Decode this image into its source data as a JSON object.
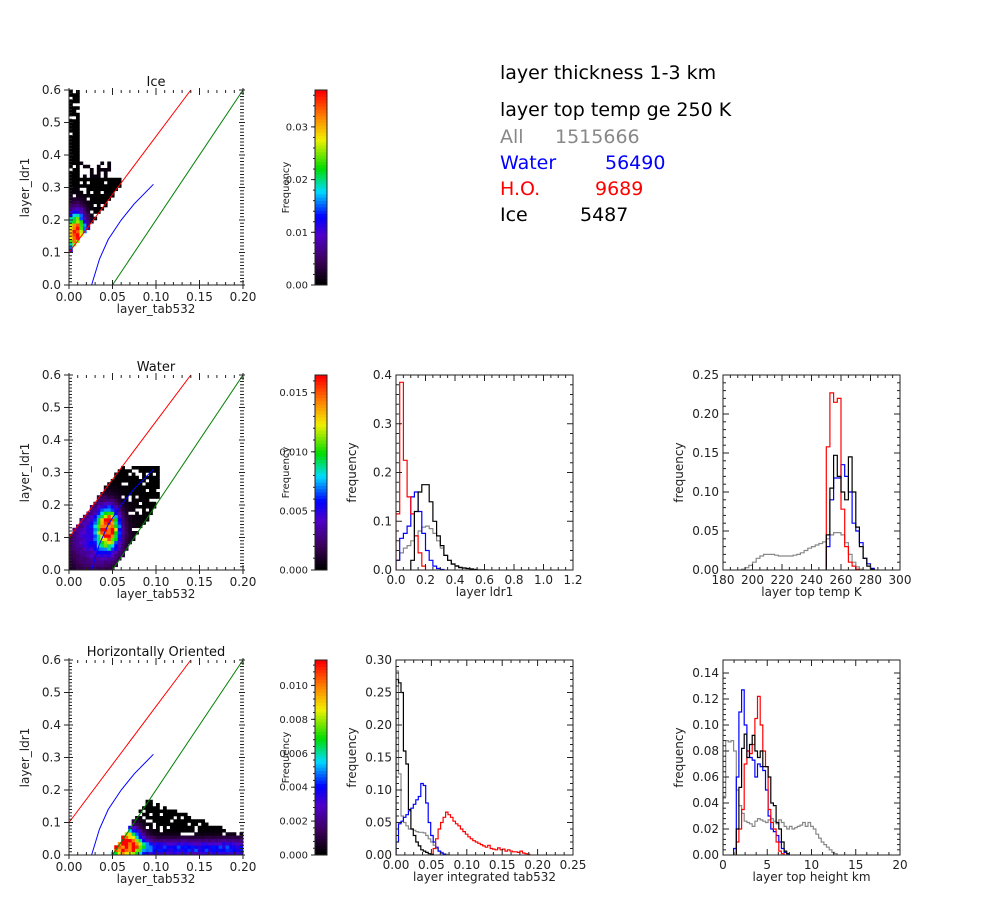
{
  "info": {
    "line1": "layer thickness 1-3 km",
    "line2": "layer top temp ge 250 K",
    "counts": [
      {
        "label": "All",
        "value": "1515666",
        "color": "#888888"
      },
      {
        "label": "Water",
        "value": "56490",
        "color": "#0000ff"
      },
      {
        "label": "H.O.",
        "value": "9689",
        "color": "#ff0000"
      },
      {
        "label": "Ice",
        "value": "5487",
        "color": "#000000"
      }
    ]
  },
  "chart_data": [
    {
      "id": "ice-2dhist",
      "type": "heatmap",
      "title": "Ice",
      "xlabel": "layer_tab532",
      "ylabel": "layer_ldr1",
      "xlim": [
        0,
        0.2
      ],
      "ylim": [
        0,
        0.6
      ],
      "xticks": [
        "0.00",
        "0.05",
        "0.10",
        "0.15",
        "0.20"
      ],
      "yticks": [
        "0.0",
        "0.1",
        "0.2",
        "0.3",
        "0.4",
        "0.5",
        "0.6"
      ],
      "colorbar": {
        "label": "Frequency",
        "max": 0.037,
        "ticks": [
          "0.00",
          "0.01",
          "0.02",
          "0.03"
        ],
        "tick_values": [
          0,
          0.01,
          0.02,
          0.03
        ]
      },
      "pattern": "ice",
      "reference_lines": [
        {
          "name": "red-line",
          "color": "#ff0000",
          "x": [
            0.0,
            0.14
          ],
          "y": [
            0.1,
            0.6
          ]
        },
        {
          "name": "green-line",
          "color": "#008000",
          "x": [
            0.05,
            0.2
          ],
          "y": [
            0.0,
            0.6
          ]
        },
        {
          "name": "blue-curve",
          "color": "#0000ff",
          "x": [
            0.026,
            0.035,
            0.045,
            0.06,
            0.075,
            0.097
          ],
          "y": [
            0.0,
            0.08,
            0.14,
            0.2,
            0.25,
            0.31
          ]
        }
      ]
    },
    {
      "id": "water-2dhist",
      "type": "heatmap",
      "title": "Water",
      "xlabel": "layer_tab532",
      "ylabel": "layer_ldr1",
      "xlim": [
        0,
        0.2
      ],
      "ylim": [
        0,
        0.6
      ],
      "xticks": [
        "0.00",
        "0.05",
        "0.10",
        "0.15",
        "0.20"
      ],
      "yticks": [
        "0.0",
        "0.1",
        "0.2",
        "0.3",
        "0.4",
        "0.5",
        "0.6"
      ],
      "colorbar": {
        "label": "Frequency",
        "max": 0.0165,
        "ticks": [
          "0.000",
          "0.005",
          "0.010",
          "0.015"
        ],
        "tick_values": [
          0,
          0.005,
          0.01,
          0.015
        ]
      },
      "pattern": "water",
      "reference_lines": [
        {
          "name": "red-line",
          "color": "#ff0000",
          "x": [
            0.0,
            0.14
          ],
          "y": [
            0.1,
            0.6
          ]
        },
        {
          "name": "green-line",
          "color": "#008000",
          "x": [
            0.05,
            0.2
          ],
          "y": [
            0.0,
            0.6
          ]
        },
        {
          "name": "blue-curve",
          "color": "#0000ff",
          "x": [
            0.026,
            0.035,
            0.045,
            0.06,
            0.075,
            0.097
          ],
          "y": [
            0.0,
            0.08,
            0.14,
            0.2,
            0.25,
            0.31
          ]
        }
      ]
    },
    {
      "id": "ho-2dhist",
      "type": "heatmap",
      "title": "Horizontally Oriented",
      "xlabel": "layer_tab532",
      "ylabel": "layer_ldr1",
      "xlim": [
        0,
        0.2
      ],
      "ylim": [
        0,
        0.6
      ],
      "xticks": [
        "0.00",
        "0.05",
        "0.10",
        "0.15",
        "0.20"
      ],
      "yticks": [
        "0.0",
        "0.1",
        "0.2",
        "0.3",
        "0.4",
        "0.5",
        "0.6"
      ],
      "colorbar": {
        "label": "Frequency",
        "max": 0.0115,
        "ticks": [
          "0.000",
          "0.002",
          "0.004",
          "0.006",
          "0.008",
          "0.010"
        ],
        "tick_values": [
          0,
          0.002,
          0.004,
          0.006,
          0.008,
          0.01
        ]
      },
      "pattern": "ho",
      "reference_lines": [
        {
          "name": "red-line",
          "color": "#ff0000",
          "x": [
            0.0,
            0.14
          ],
          "y": [
            0.1,
            0.6
          ]
        },
        {
          "name": "green-line",
          "color": "#008000",
          "x": [
            0.05,
            0.2
          ],
          "y": [
            0.0,
            0.6
          ]
        },
        {
          "name": "blue-curve",
          "color": "#0000ff",
          "x": [
            0.026,
            0.035,
            0.045,
            0.06,
            0.075,
            0.097
          ],
          "y": [
            0.0,
            0.08,
            0.14,
            0.2,
            0.25,
            0.31
          ]
        }
      ]
    },
    {
      "id": "ldr1-hist",
      "type": "line",
      "style": "step",
      "title": "",
      "xlabel": "layer ldr1",
      "ylabel": "frequency",
      "xlim": [
        0,
        1.2
      ],
      "ylim": [
        0,
        0.4
      ],
      "xticks": [
        "0.0",
        "0.2",
        "0.4",
        "0.6",
        "0.8",
        "1.0",
        "1.2"
      ],
      "xtick_values": [
        0,
        0.2,
        0.4,
        0.6,
        0.8,
        1.0,
        1.2
      ],
      "yticks": [
        "0.0",
        "0.1",
        "0.2",
        "0.3",
        "0.4"
      ],
      "ytick_values": [
        0,
        0.1,
        0.2,
        0.3,
        0.4
      ],
      "bin_width": 0.025,
      "series": [
        {
          "name": "All",
          "color": "#888888",
          "start": 0.0,
          "values": [
            0.02,
            0.035,
            0.045,
            0.05,
            0.06,
            0.07,
            0.08,
            0.088,
            0.09,
            0.085,
            0.075,
            0.06,
            0.045,
            0.03,
            0.02,
            0.013,
            0.009,
            0.006,
            0.004,
            0.003,
            0.002,
            0.0015,
            0.001,
            0.0008,
            0.0005
          ]
        },
        {
          "name": "Water",
          "color": "#0000ff",
          "start": 0.0,
          "values": [
            0.02,
            0.065,
            0.075,
            0.09,
            0.15,
            0.16,
            0.12,
            0.075,
            0.04,
            0.02,
            0.008,
            0.003,
            0.001
          ]
        },
        {
          "name": "H.O.",
          "color": "#ff0000",
          "start": 0.0,
          "values": [
            0.115,
            0.385,
            0.225,
            0.15,
            0.115,
            0.07,
            0.035,
            0.008
          ]
        },
        {
          "name": "Ice",
          "color": "#000000",
          "start": 0.1,
          "values": [
            0.02,
            0.12,
            0.16,
            0.175,
            0.175,
            0.14,
            0.1,
            0.07,
            0.05,
            0.03,
            0.02,
            0.012,
            0.008,
            0.005,
            0.004,
            0.003,
            0.002,
            0.001
          ]
        }
      ]
    },
    {
      "id": "temp-hist",
      "type": "line",
      "style": "step",
      "title": "",
      "xlabel": "layer top temp K",
      "ylabel": "frequency",
      "xlim": [
        180,
        300
      ],
      "ylim": [
        0,
        0.25
      ],
      "xticks": [
        "180",
        "200",
        "220",
        "240",
        "260",
        "280",
        "300"
      ],
      "xtick_values": [
        180,
        200,
        220,
        240,
        260,
        280,
        300
      ],
      "yticks": [
        "0.00",
        "0.05",
        "0.10",
        "0.15",
        "0.20",
        "0.25"
      ],
      "ytick_values": [
        0,
        0.05,
        0.1,
        0.15,
        0.2,
        0.25
      ],
      "bin_width": 2.5,
      "series": [
        {
          "name": "All",
          "color": "#888888",
          "start": 192.5,
          "values": [
            0.001,
            0.003,
            0.006,
            0.01,
            0.015,
            0.018,
            0.02,
            0.02,
            0.02,
            0.019,
            0.018,
            0.018,
            0.018,
            0.018,
            0.019,
            0.02,
            0.022,
            0.025,
            0.028,
            0.03,
            0.032,
            0.034,
            0.036,
            0.04,
            0.045,
            0.048,
            0.048,
            0.045,
            0.035,
            0.02,
            0.01,
            0.004,
            0.001
          ]
        },
        {
          "name": "Water",
          "color": "#0000ff",
          "start": 250,
          "values": [
            0.03,
            0.09,
            0.118,
            0.118,
            0.135,
            0.12,
            0.1,
            0.06,
            0.05,
            0.035,
            0.015,
            0.008,
            0.002
          ]
        },
        {
          "name": "H.O.",
          "color": "#ff0000",
          "start": 250,
          "values": [
            0.158,
            0.227,
            0.215,
            0.22,
            0.078,
            0.03,
            0.01,
            0.005,
            0.001
          ]
        },
        {
          "name": "Ice",
          "color": "#000000",
          "start": 250,
          "values": [
            0.045,
            0.105,
            0.147,
            0.12,
            0.1,
            0.09,
            0.145,
            0.1,
            0.055,
            0.03,
            0.015,
            0.005,
            0.001
          ]
        }
      ]
    },
    {
      "id": "tab532-hist",
      "type": "line",
      "style": "step",
      "title": "",
      "xlabel": "layer integrated tab532",
      "ylabel": "frequency",
      "xlim": [
        0,
        0.25
      ],
      "ylim": [
        0,
        0.3
      ],
      "xticks": [
        "0.00",
        "0.05",
        "0.10",
        "0.15",
        "0.20",
        "0.25"
      ],
      "xtick_values": [
        0,
        0.05,
        0.1,
        0.15,
        0.2,
        0.25
      ],
      "yticks": [
        "0.00",
        "0.05",
        "0.10",
        "0.15",
        "0.20",
        "0.25",
        "0.30"
      ],
      "ytick_values": [
        0,
        0.05,
        0.1,
        0.15,
        0.2,
        0.25,
        0.3
      ],
      "bin_width": 0.0035,
      "series": [
        {
          "name": "All",
          "color": "#888888",
          "start": 0.0,
          "values": [
            0.283,
            0.125,
            0.06,
            0.05,
            0.045,
            0.04,
            0.04,
            0.038,
            0.036,
            0.035,
            0.035,
            0.034,
            0.03,
            0.025,
            0.02,
            0.015,
            0.01,
            0.006,
            0.004,
            0.002,
            0.001
          ]
        },
        {
          "name": "Water",
          "color": "#0000ff",
          "start": 0.0,
          "values": [
            0.02,
            0.048,
            0.052,
            0.058,
            0.062,
            0.068,
            0.072,
            0.078,
            0.085,
            0.09,
            0.11,
            0.107,
            0.08,
            0.05,
            0.03,
            0.02,
            0.012,
            0.006,
            0.003,
            0.001
          ]
        },
        {
          "name": "H.O.",
          "color": "#ff0000",
          "start": 0.0525,
          "values": [
            0.01,
            0.025,
            0.04,
            0.05,
            0.058,
            0.066,
            0.062,
            0.058,
            0.052,
            0.048,
            0.045,
            0.04,
            0.036,
            0.032,
            0.028,
            0.025,
            0.022,
            0.02,
            0.018,
            0.016,
            0.014,
            0.012,
            0.015,
            0.01,
            0.009,
            0.008,
            0.011,
            0.008,
            0.009,
            0.006,
            0.008,
            0.006,
            0.005,
            0.005,
            0.004,
            0.006,
            0.003,
            0.002,
            0.001
          ]
        },
        {
          "name": "Ice",
          "color": "#000000",
          "start": 0.0,
          "values": [
            0.27,
            0.265,
            0.25,
            0.16,
            0.14,
            0.07,
            0.04,
            0.03,
            0.02,
            0.014,
            0.008,
            0.006,
            0.004,
            0.002,
            0.001
          ]
        }
      ]
    },
    {
      "id": "height-hist",
      "type": "line",
      "style": "step",
      "title": "",
      "xlabel": "layer top height km",
      "ylabel": "frequency",
      "xlim": [
        0,
        20
      ],
      "ylim": [
        0,
        0.15
      ],
      "xticks": [
        "0",
        "5",
        "10",
        "15",
        "20"
      ],
      "xtick_values": [
        0,
        5,
        10,
        15,
        20
      ],
      "yticks": [
        "0.00",
        "0.02",
        "0.04",
        "0.06",
        "0.08",
        "0.10",
        "0.12",
        "0.14"
      ],
      "ytick_values": [
        0,
        0.02,
        0.04,
        0.06,
        0.08,
        0.1,
        0.12,
        0.14
      ],
      "bin_width": 0.3,
      "series": [
        {
          "name": "All",
          "color": "#888888",
          "start": 0.0,
          "values": [
            0.045,
            0.088,
            0.087,
            0.088,
            0.08,
            0.05,
            0.038,
            0.032,
            0.026,
            0.025,
            0.024,
            0.022,
            0.026,
            0.028,
            0.027,
            0.026,
            0.025,
            0.027,
            0.028,
            0.026,
            0.024,
            0.027,
            0.025,
            0.022,
            0.02,
            0.022,
            0.02,
            0.021,
            0.022,
            0.023,
            0.025,
            0.022,
            0.025,
            0.022,
            0.02,
            0.016,
            0.013,
            0.01,
            0.008,
            0.006,
            0.004,
            0.002,
            0.001
          ]
        },
        {
          "name": "Water",
          "color": "#0000ff",
          "start": 1.2,
          "values": [
            0.005,
            0.06,
            0.11,
            0.127,
            0.1,
            0.08,
            0.075,
            0.073,
            0.06,
            0.07,
            0.068,
            0.065,
            0.05,
            0.03,
            0.02,
            0.018,
            0.015,
            0.01,
            0.005,
            0.002,
            0.001
          ]
        },
        {
          "name": "H.O.",
          "color": "#ff0000",
          "start": 1.5,
          "values": [
            0.01,
            0.02,
            0.035,
            0.07,
            0.08,
            0.078,
            0.085,
            0.105,
            0.122,
            0.1,
            0.08,
            0.068,
            0.035,
            0.025,
            0.02,
            0.01,
            0.003,
            0.001
          ]
        },
        {
          "name": "Ice",
          "color": "#000000",
          "start": 1.5,
          "values": [
            0.02,
            0.052,
            0.082,
            0.093,
            0.075,
            0.085,
            0.092,
            0.08,
            0.075,
            0.08,
            0.068,
            0.068,
            0.06,
            0.04,
            0.038,
            0.025,
            0.02,
            0.01,
            0.003,
            0.001
          ]
        }
      ]
    }
  ]
}
